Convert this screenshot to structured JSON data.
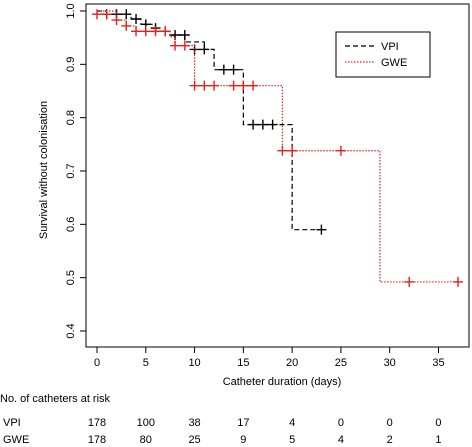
{
  "chart_data": {
    "type": "line",
    "subtype": "kaplan-meier",
    "xlabel": "Catheter duration (days)",
    "ylabel": "Survival without colonisation",
    "xlim": [
      0,
      37
    ],
    "ylim": [
      0.4,
      1.0
    ],
    "x_ticks": [
      "0",
      "5",
      "10",
      "15",
      "20",
      "25",
      "30",
      "35"
    ],
    "y_ticks": [
      "0.4",
      "0.5",
      "0.6",
      "0.7",
      "0.8",
      "0.9",
      "1.0"
    ],
    "grid": false,
    "legend_position": "top-right",
    "series": [
      {
        "name": "VPI",
        "color": "#000000",
        "line_style": "dashed",
        "steps": [
          [
            0,
            1.0
          ],
          [
            1,
            0.994
          ],
          [
            3.5,
            0.985
          ],
          [
            4.5,
            0.975
          ],
          [
            6,
            0.962
          ],
          [
            7,
            0.955
          ],
          [
            9,
            0.942
          ],
          [
            11,
            0.928
          ],
          [
            12,
            0.89
          ],
          [
            15,
            0.787
          ],
          [
            20,
            0.59
          ],
          [
            23,
            0.59
          ]
        ],
        "censored": [
          [
            1,
            0.994
          ],
          [
            2,
            0.994
          ],
          [
            3,
            0.994
          ],
          [
            4,
            0.985
          ],
          [
            5,
            0.975
          ],
          [
            6,
            0.968
          ],
          [
            7,
            0.962
          ],
          [
            8,
            0.955
          ],
          [
            9,
            0.955
          ],
          [
            10,
            0.928
          ],
          [
            11,
            0.928
          ],
          [
            13,
            0.89
          ],
          [
            14,
            0.89
          ],
          [
            16,
            0.787
          ],
          [
            17,
            0.787
          ],
          [
            18,
            0.787
          ],
          [
            23,
            0.59
          ]
        ]
      },
      {
        "name": "GWE",
        "color": "#e6201c",
        "line_style": "dotted",
        "steps": [
          [
            0,
            1.0
          ],
          [
            2,
            0.983
          ],
          [
            3,
            0.972
          ],
          [
            4,
            0.962
          ],
          [
            7.5,
            0.952
          ],
          [
            8,
            0.935
          ],
          [
            10,
            0.86
          ],
          [
            19,
            0.738
          ],
          [
            29,
            0.492
          ],
          [
            37,
            0.492
          ]
        ],
        "censored": [
          [
            0,
            0.994
          ],
          [
            1,
            0.994
          ],
          [
            2,
            0.983
          ],
          [
            3,
            0.972
          ],
          [
            4,
            0.962
          ],
          [
            5,
            0.962
          ],
          [
            6,
            0.962
          ],
          [
            7,
            0.962
          ],
          [
            8,
            0.935
          ],
          [
            9,
            0.935
          ],
          [
            10,
            0.86
          ],
          [
            11,
            0.86
          ],
          [
            12,
            0.86
          ],
          [
            14,
            0.86
          ],
          [
            15,
            0.86
          ],
          [
            16,
            0.86
          ],
          [
            19,
            0.738
          ],
          [
            20,
            0.738
          ],
          [
            25,
            0.738
          ],
          [
            32,
            0.492
          ],
          [
            37,
            0.492
          ]
        ]
      }
    ],
    "risk_table": {
      "title": "No. of catheters at risk",
      "times": [
        0,
        5,
        10,
        15,
        20,
        25,
        30,
        35
      ],
      "rows": [
        {
          "label": "VPI",
          "values": [
            "178",
            "100",
            "38",
            "17",
            "4",
            "0",
            "0",
            "0"
          ]
        },
        {
          "label": "GWE",
          "values": [
            "178",
            "80",
            "25",
            "9",
            "5",
            "4",
            "2",
            "1"
          ]
        }
      ]
    }
  }
}
